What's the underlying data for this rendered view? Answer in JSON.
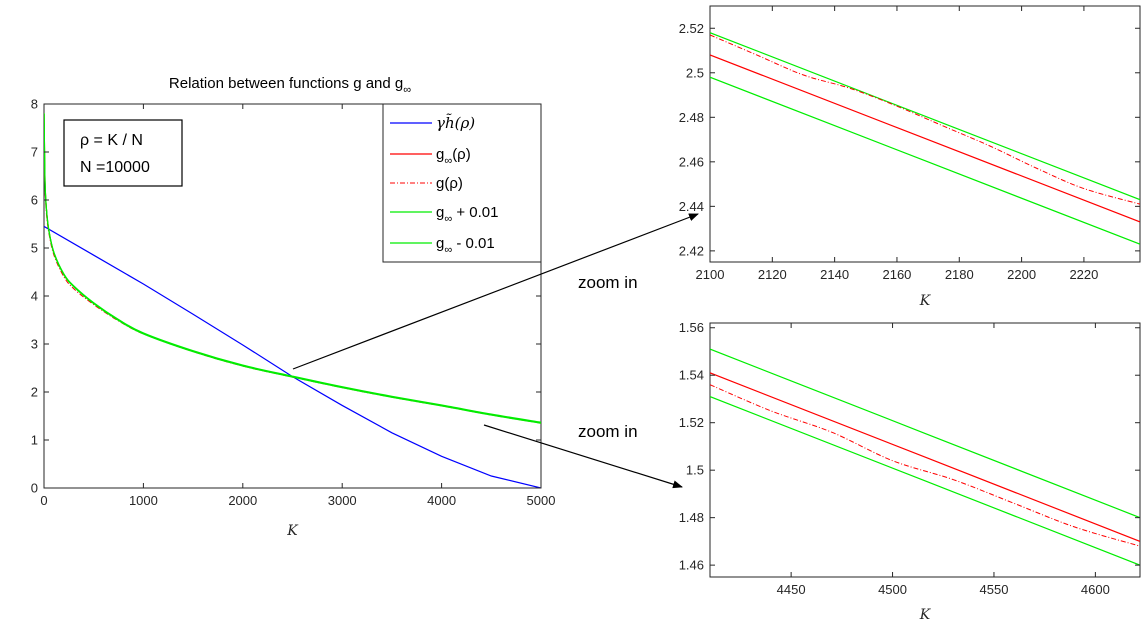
{
  "colors": {
    "blue": "#0000ff",
    "red": "#ff0000",
    "green": "#00ee00",
    "axis": "#262626"
  },
  "chart_data": [
    {
      "id": "main",
      "type": "line",
      "title": "Relation between functions g and g",
      "title_subscript": "∞",
      "xlabel": "K",
      "ylabel": "",
      "xlim": [
        0,
        5000
      ],
      "ylim": [
        0,
        8
      ],
      "xticks": [
        "0",
        "1000",
        "2000",
        "3000",
        "4000",
        "5000"
      ],
      "yticks": [
        "0",
        "1",
        "2",
        "3",
        "4",
        "5",
        "6",
        "7",
        "8"
      ],
      "legend_position": "top-right",
      "legend": [
        {
          "label": "γh̃(ρ)",
          "color": "#0000ff",
          "style": "solid"
        },
        {
          "label_main": "g",
          "label_sub": "∞",
          "label_tail": "(ρ)",
          "color": "#ff0000",
          "style": "solid"
        },
        {
          "label_main": "g",
          "label_sub": "",
          "label_tail": "(ρ)",
          "color": "#ff0000",
          "style": "dashdot"
        },
        {
          "label_main": "g",
          "label_sub": "∞",
          "label_tail": " + 0.01",
          "color": "#00ee00",
          "style": "solid"
        },
        {
          "label_main": "g",
          "label_sub": "∞",
          "label_tail": " - 0.01",
          "color": "#00ee00",
          "style": "solid"
        }
      ],
      "textbox": {
        "line1": "ρ = K / N",
        "line2": "N =10000"
      },
      "series": [
        {
          "name": "gamma_h_tilde",
          "color": "#0000ff",
          "x": [
            0,
            500,
            1000,
            1500,
            2000,
            2500,
            3000,
            3500,
            4000,
            4500,
            5000
          ],
          "y": [
            5.45,
            4.85,
            4.25,
            3.62,
            2.98,
            2.32,
            1.72,
            1.15,
            0.66,
            0.25,
            0.0
          ]
        },
        {
          "name": "g_inf",
          "color": "#ff0000",
          "x": [
            1,
            10,
            25,
            50,
            100,
            200,
            300,
            500,
            750,
            1000,
            1500,
            2000,
            2500,
            3000,
            3500,
            4000,
            4500,
            5000
          ],
          "y": [
            7.8,
            6.4,
            5.8,
            5.35,
            4.9,
            4.45,
            4.2,
            3.85,
            3.5,
            3.22,
            2.85,
            2.55,
            2.32,
            2.1,
            1.9,
            1.72,
            1.53,
            1.36
          ]
        },
        {
          "name": "g",
          "color": "#ff0000",
          "x": [
            1,
            10,
            25,
            50,
            100,
            200,
            300,
            500,
            750,
            1000,
            1500,
            2000,
            2500,
            3000,
            3500,
            4000,
            4500,
            5000
          ],
          "y": [
            7.6,
            6.3,
            5.7,
            5.3,
            4.85,
            4.4,
            4.15,
            3.82,
            3.48,
            3.21,
            2.84,
            2.54,
            2.31,
            2.09,
            1.89,
            1.71,
            1.52,
            1.35
          ]
        },
        {
          "name": "g_inf_plus",
          "color": "#00ee00",
          "x": [
            1,
            10,
            25,
            50,
            100,
            200,
            300,
            500,
            750,
            1000,
            1500,
            2000,
            2500,
            3000,
            3500,
            4000,
            4500,
            5000
          ],
          "y": [
            7.81,
            6.41,
            5.81,
            5.36,
            4.91,
            4.46,
            4.21,
            3.86,
            3.51,
            3.23,
            2.86,
            2.56,
            2.33,
            2.11,
            1.91,
            1.73,
            1.54,
            1.37
          ]
        },
        {
          "name": "g_inf_minus",
          "color": "#00ee00",
          "x": [
            1,
            10,
            25,
            50,
            100,
            200,
            300,
            500,
            750,
            1000,
            1500,
            2000,
            2500,
            3000,
            3500,
            4000,
            4500,
            5000
          ],
          "y": [
            7.79,
            6.39,
            5.79,
            5.34,
            4.89,
            4.44,
            4.19,
            3.84,
            3.49,
            3.21,
            2.84,
            2.54,
            2.31,
            2.09,
            1.89,
            1.71,
            1.52,
            1.35
          ]
        }
      ]
    },
    {
      "id": "zoom1",
      "type": "line",
      "title": "",
      "xlabel": "K",
      "ylabel": "",
      "xlim": [
        2100,
        2238
      ],
      "ylim": [
        2.415,
        2.53
      ],
      "xticks": [
        "2100",
        "2120",
        "2140",
        "2160",
        "2180",
        "2200",
        "2220"
      ],
      "yticks": [
        "2.42",
        "2.44",
        "2.46",
        "2.48",
        "2.5",
        "2.52"
      ],
      "series": [
        {
          "name": "g_inf_plus",
          "color": "#00ee00",
          "x": [
            2100,
            2238
          ],
          "y": [
            2.518,
            2.443
          ]
        },
        {
          "name": "g_inf",
          "color": "#ff0000",
          "x": [
            2100,
            2238
          ],
          "y": [
            2.508,
            2.433
          ]
        },
        {
          "name": "g_inf_minus",
          "color": "#00ee00",
          "x": [
            2100,
            2238
          ],
          "y": [
            2.498,
            2.423
          ]
        },
        {
          "name": "g",
          "color": "#ff0000",
          "x": [
            2100,
            2115,
            2130,
            2145,
            2160,
            2175,
            2190,
            2205,
            2220,
            2238
          ],
          "y": [
            2.517,
            2.508,
            2.499,
            2.493,
            2.485,
            2.476,
            2.467,
            2.457,
            2.448,
            2.441
          ]
        }
      ]
    },
    {
      "id": "zoom2",
      "type": "line",
      "title": "",
      "xlabel": "K",
      "ylabel": "",
      "xlim": [
        4410,
        4622
      ],
      "ylim": [
        1.455,
        1.562
      ],
      "xticks": [
        "4450",
        "4500",
        "4550",
        "4600"
      ],
      "yticks": [
        "1.46",
        "1.48",
        "1.5",
        "1.52",
        "1.54",
        "1.56"
      ],
      "series": [
        {
          "name": "g_inf_plus",
          "color": "#00ee00",
          "x": [
            4410,
            4622
          ],
          "y": [
            1.551,
            1.48
          ]
        },
        {
          "name": "g_inf",
          "color": "#ff0000",
          "x": [
            4410,
            4622
          ],
          "y": [
            1.541,
            1.47
          ]
        },
        {
          "name": "g_inf_minus",
          "color": "#00ee00",
          "x": [
            4410,
            4622
          ],
          "y": [
            1.531,
            1.46
          ]
        },
        {
          "name": "g",
          "color": "#ff0000",
          "x": [
            4410,
            4440,
            4470,
            4500,
            4530,
            4560,
            4590,
            4622
          ],
          "y": [
            1.536,
            1.525,
            1.516,
            1.504,
            1.496,
            1.486,
            1.476,
            1.468
          ]
        }
      ]
    }
  ],
  "annotations": [
    {
      "label": "zoom in"
    },
    {
      "label": "zoom in"
    }
  ]
}
